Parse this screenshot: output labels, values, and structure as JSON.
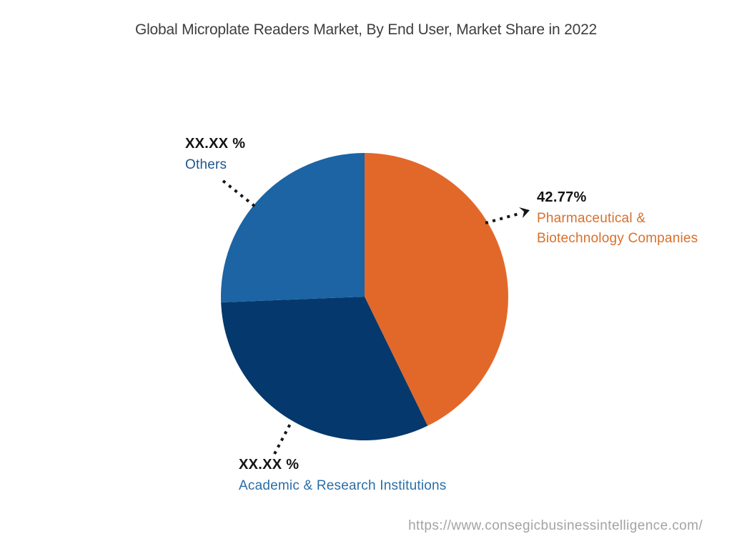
{
  "title": "Global Microplate Readers Market, By End User, Market Share in 2022",
  "watermark": "https://www.consegicbusinessintelligence.com/",
  "chart_data": {
    "type": "pie",
    "title": "Global Microplate Readers Market, By End User, Market Share in 2022",
    "start_angle_deg": 0,
    "direction": "clockwise",
    "legend": "none",
    "slices": [
      {
        "label": "Pharmaceutical & Biotechnology Companies",
        "label_lines": [
          "Pharmaceutical &",
          "Biotechnology Companies"
        ],
        "display_value": "42.77%",
        "value": 42.77,
        "color": "#E2682A",
        "label_color": "#D8702C"
      },
      {
        "label": "Academic & Research Institutions",
        "display_value": "XX.XX %",
        "value": 31.6,
        "color": "#05386C",
        "label_color": "#2A6EA6"
      },
      {
        "label": "Others",
        "display_value": "XX.XX %",
        "value": 25.63,
        "color": "#1C64A3",
        "label_color": "#1E568E"
      }
    ]
  }
}
